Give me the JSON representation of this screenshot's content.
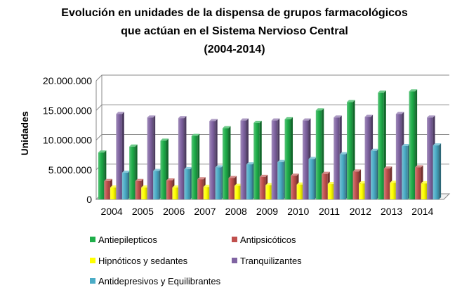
{
  "chart_data": {
    "type": "bar",
    "title_lines": [
      "Evolución en unidades de la dispensa de grupos farmacológicos",
      "que actúan en el Sistema Nervioso Central",
      "(2004-2014)"
    ],
    "ylabel": "Unidades",
    "xlabel": "",
    "categories": [
      "2004",
      "2005",
      "2006",
      "2007",
      "2008",
      "2009",
      "2010",
      "2011",
      "2012",
      "2013",
      "2014"
    ],
    "y_ticks": [
      "0",
      "5.000.000",
      "10.000.000",
      "15.000.000",
      "20.000.000"
    ],
    "ylim": [
      0,
      20000000
    ],
    "grid": true,
    "legend_position": "bottom",
    "series": [
      {
        "name": "Antiepilepticos",
        "color": "#1fae4a",
        "values": [
          7900000,
          8900000,
          9900000,
          10700000,
          12000000,
          12900000,
          13500000,
          15000000,
          16400000,
          18000000,
          18200000
        ]
      },
      {
        "name": "Antipsicóticos",
        "color": "#c0504d",
        "values": [
          3100000,
          3100000,
          3200000,
          3400000,
          3600000,
          3800000,
          4000000,
          4300000,
          4700000,
          5200000,
          5400000
        ]
      },
      {
        "name": "Hipnóticos y sedantes",
        "color": "#ffff00",
        "values": [
          2000000,
          2000000,
          2000000,
          2100000,
          2300000,
          2400000,
          2500000,
          2600000,
          2700000,
          2800000,
          2700000
        ]
      },
      {
        "name": "Tranquilizantes",
        "color": "#8064a2",
        "values": [
          14400000,
          13800000,
          13700000,
          13200000,
          13300000,
          13300000,
          13300000,
          13800000,
          13900000,
          14400000,
          13800000
        ]
      },
      {
        "name": "Antidepresivos y Equilibrantes",
        "color": "#4bacc6",
        "values": [
          4500000,
          4800000,
          5100000,
          5400000,
          5900000,
          6300000,
          6800000,
          7600000,
          8200000,
          9000000,
          9100000
        ]
      }
    ]
  }
}
